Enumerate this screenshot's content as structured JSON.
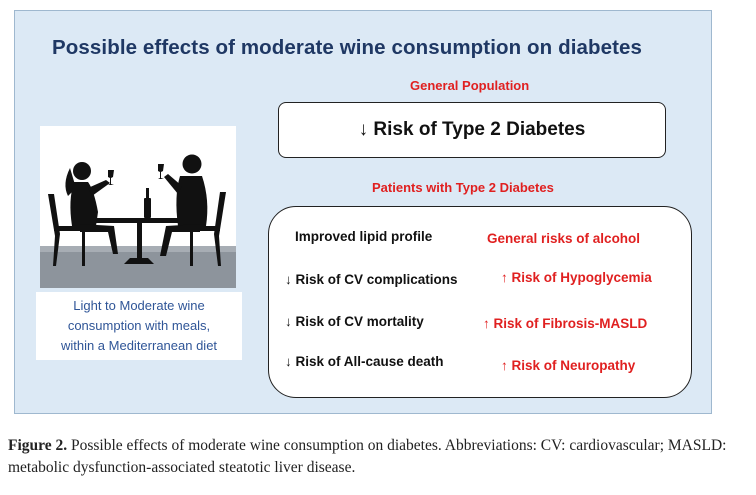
{
  "figure": {
    "title": "Possible effects of moderate wine consumption on diabetes",
    "general_population": {
      "heading": "General Population",
      "effect": "↓ Risk of Type 2 Diabetes"
    },
    "patients": {
      "heading": "Patients with Type 2 Diabetes",
      "benefits": [
        "Improved lipid profile",
        "↓ Risk of CV complications",
        "↓  Risk of CV mortality",
        "↓  Risk of All-cause death"
      ],
      "risks_heading": "General risks of alcohol",
      "risks": [
        "↑ Risk of Hypoglycemia",
        "↑ Risk of Fibrosis-MASLD",
        "↑ Risk of Neuropathy"
      ]
    },
    "image_caption": [
      "Light to Moderate wine",
      "consumption with meals,",
      "within a Mediterranean diet"
    ],
    "image_icon": "couple-dining-silhouette-icon"
  },
  "caption": {
    "label": "Figure 2.",
    "text": " Possible effects of moderate wine consumption on diabetes. Abbreviations: CV: cardiovascular; MASLD: metabolic dysfunction-associated steatotic liver disease."
  },
  "colors": {
    "panel_bg": "#dce9f5",
    "title": "#1f3864",
    "red": "#e02020",
    "caption_blue": "#2f5597"
  }
}
